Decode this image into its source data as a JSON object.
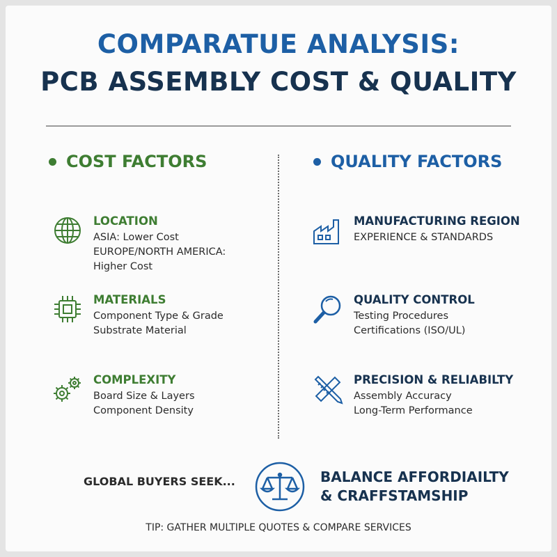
{
  "header": {
    "title_line1": "COMPARATUE ANALYSIS:",
    "title_line2": "PCB ASSEMBLY COST & QUALITY"
  },
  "cost": {
    "heading": "COST FACTORS",
    "items": [
      {
        "icon": "globe-icon",
        "title": "LOCATION",
        "lines": [
          "ASIA: Lower Cost",
          "EUROPE/NORTH AMERICA:",
          "Higher Cost"
        ]
      },
      {
        "icon": "chip-icon",
        "title": "MATERIALS",
        "lines": [
          "Component Type & Grade",
          "Substrate Material"
        ]
      },
      {
        "icon": "gears-icon",
        "title": "COMPLEXITY",
        "lines": [
          "Board Size & Layers",
          "Component Density"
        ]
      }
    ]
  },
  "quality": {
    "heading": "QUALITY FACTORS",
    "items": [
      {
        "icon": "factory-icon",
        "title": "MANUFACTURING REGION",
        "lines": [
          "EXPERIENCE & STANDARDS"
        ]
      },
      {
        "icon": "magnifier-icon",
        "title": "QUALITY CONTROL",
        "lines": [
          "Testing Procedures",
          "Certifications (ISO/UL)"
        ]
      },
      {
        "icon": "ruler-pencil-icon",
        "title": "PRECISION & RELIABILTY",
        "lines": [
          "Assembly Accuracy",
          "Long-Term Performance"
        ]
      }
    ]
  },
  "footer": {
    "seek": "GLOBAL BUYERS SEEK...",
    "balance_line1": "BALANCE AFFORDIAILTY",
    "balance_line2": "& CRAFFSTAMSHIP",
    "tip": "TIP: GATHER MULTIPLE QUOTES & COMPARE SERVICES"
  },
  "colors": {
    "cost_green": "#3e7d32",
    "quality_blue": "#1d5fa5",
    "navy": "#17324f"
  }
}
